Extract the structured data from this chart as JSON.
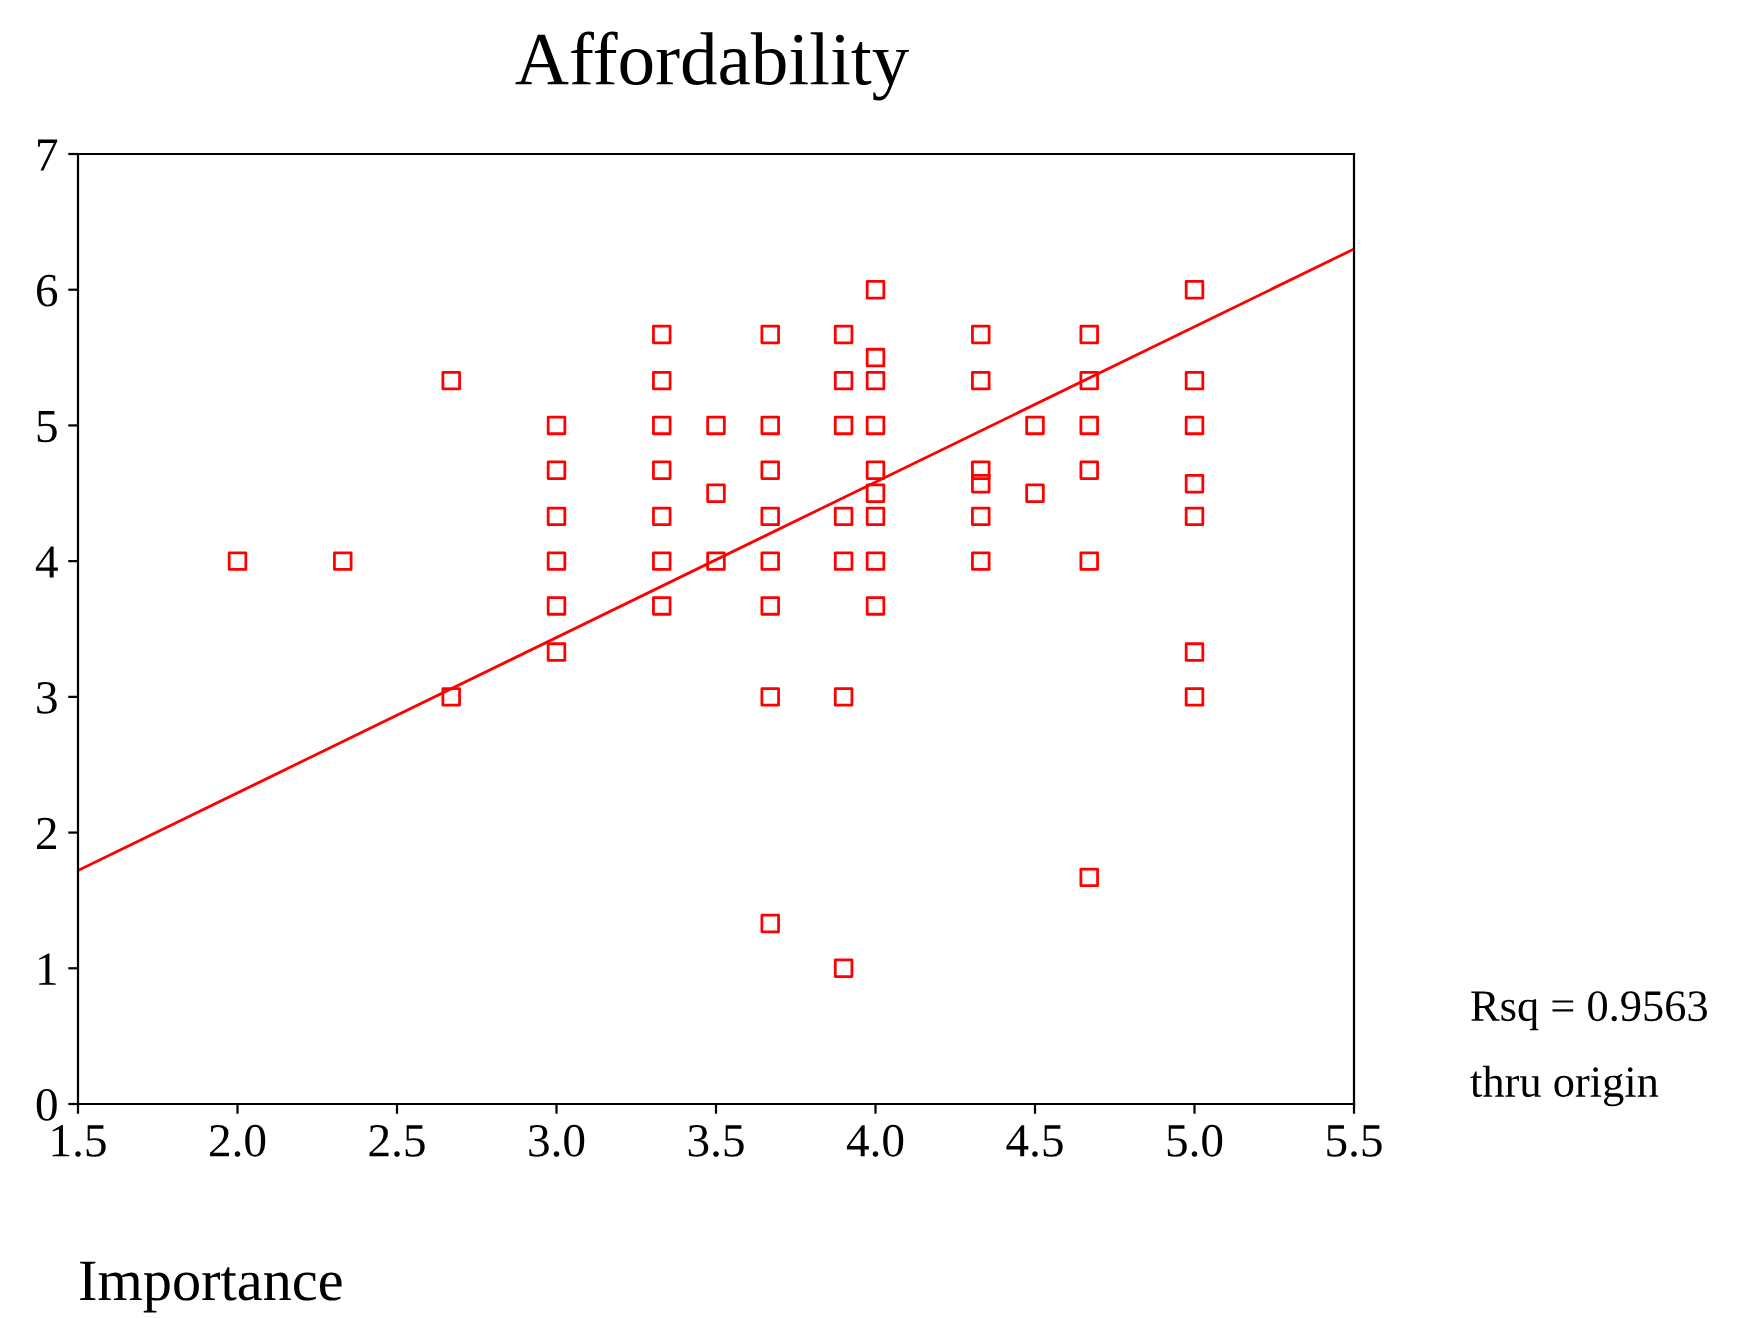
{
  "chart_data": {
    "type": "scatter",
    "title": "Affordability",
    "xlabel": "Importance",
    "annotations": [
      "Rsq = 0.9563",
      "thru origin"
    ],
    "series": [
      {
        "color": "#ff0000",
        "marker": "square",
        "x": [
          2.0,
          2.33,
          2.67,
          2.67,
          3.0,
          3.0,
          3.0,
          3.0,
          3.0,
          3.0,
          3.33,
          3.33,
          3.33,
          3.33,
          3.33,
          3.33,
          3.33,
          3.5,
          3.5,
          3.5,
          3.67,
          3.67,
          3.67,
          3.67,
          3.67,
          3.67,
          3.67,
          3.67,
          3.9,
          3.9,
          3.9,
          3.9,
          3.9,
          3.9,
          3.9,
          4.0,
          4.0,
          4.0,
          4.0,
          4.0,
          4.0,
          4.0,
          4.0,
          4.0,
          4.33,
          4.33,
          4.33,
          4.33,
          4.33,
          4.33,
          4.5,
          4.5,
          4.67,
          4.67,
          4.67,
          4.67,
          4.67,
          4.67,
          5.0,
          5.0,
          5.0,
          5.0,
          5.0,
          5.0,
          5.0
        ],
        "values": [
          4,
          4,
          5.33,
          3,
          5,
          4.67,
          4.33,
          4,
          3.67,
          3.33,
          5.67,
          5.33,
          5,
          4.67,
          4.33,
          4,
          3.67,
          5,
          4.5,
          4,
          5.67,
          5,
          4.67,
          4.33,
          4,
          3.67,
          3,
          1.33,
          5.67,
          5.33,
          5,
          4.33,
          4,
          3,
          1,
          6,
          5.5,
          5.33,
          5,
          4.67,
          4.5,
          4.33,
          4,
          3.67,
          5.67,
          5.33,
          4.67,
          4.57,
          4.33,
          4,
          5,
          4.5,
          5.67,
          5.33,
          5,
          4.67,
          4,
          1.67,
          6,
          5.33,
          5,
          4.57,
          4.33,
          3.33,
          3
        ]
      },
      {
        "type": "line",
        "color": "#ff0000",
        "marker": "none",
        "line_style": "solid",
        "x": [
          1.5,
          5.5
        ],
        "values": [
          1.72,
          6.3
        ]
      }
    ],
    "xlim": [
      1.5,
      5.5
    ],
    "ylim": [
      0,
      7
    ],
    "xticks": [
      1.5,
      {
        "value": 2,
        "label": "2.0"
      },
      2.5,
      {
        "value": 3,
        "label": "3.0"
      },
      3.5,
      {
        "value": 4,
        "label": "4.0"
      },
      4.5,
      {
        "value": 5,
        "label": "5.0"
      },
      5.5
    ],
    "yticks": [
      0,
      1,
      2,
      3,
      4,
      5,
      6,
      7
    ],
    "grid": false,
    "legend": false
  }
}
